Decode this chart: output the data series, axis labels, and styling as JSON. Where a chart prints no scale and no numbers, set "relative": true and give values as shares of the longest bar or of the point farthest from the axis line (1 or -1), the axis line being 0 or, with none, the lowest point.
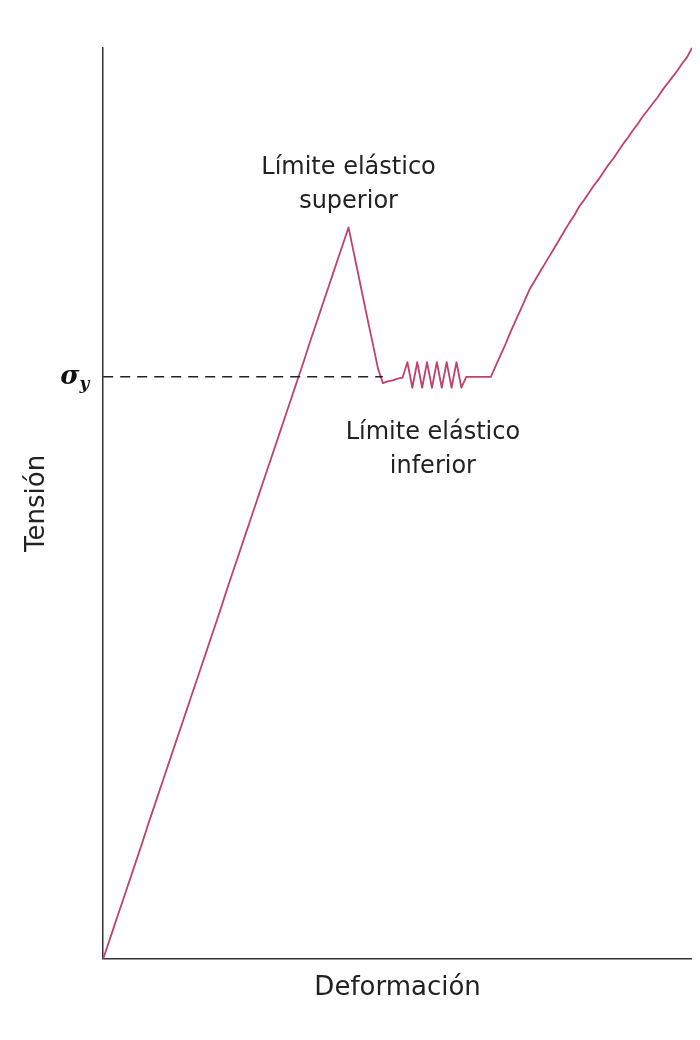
{
  "chart_data": {
    "type": "line",
    "relative": true,
    "xlabel": "Deformación",
    "ylabel": "Tensión",
    "color": "#c2406c",
    "marker": "none",
    "line_style": "solid",
    "grid": false,
    "legend": false,
    "categories": [
      null,
      null,
      null,
      null,
      null,
      null,
      null,
      null,
      null,
      null,
      null,
      null,
      null,
      null,
      null,
      null,
      null,
      null,
      null,
      null,
      null,
      null,
      null,
      null,
      null,
      null,
      null,
      null,
      null,
      null,
      null,
      null,
      null,
      null,
      null,
      null,
      null,
      null,
      null,
      null,
      null,
      null,
      null,
      null,
      null,
      null,
      null,
      null,
      null,
      null,
      null,
      null,
      null,
      null,
      null,
      null,
      null,
      null,
      null,
      null,
      null,
      null,
      null,
      null,
      null,
      null,
      null,
      null,
      null,
      null,
      null,
      null,
      null,
      null,
      null,
      null,
      null,
      null,
      null,
      null,
      null,
      null,
      null,
      null,
      null,
      null,
      null,
      null,
      null,
      null,
      null,
      null,
      null,
      null,
      null,
      null,
      null,
      null,
      null,
      null,
      null,
      null,
      null,
      null,
      null,
      null,
      null,
      null,
      null,
      null,
      null,
      null,
      null,
      null,
      null,
      null,
      null,
      null,
      null,
      null,
      null
    ],
    "values": [
      0,
      0.016,
      0.032,
      0.048,
      0.064,
      0.08,
      0.096,
      0.112,
      0.128,
      0.145,
      0.161,
      0.177,
      0.193,
      0.209,
      0.225,
      0.241,
      0.257,
      0.273,
      0.289,
      0.305,
      0.321,
      0.337,
      0.353,
      0.369,
      0.385,
      0.402,
      0.418,
      0.434,
      0.45,
      0.466,
      0.482,
      0.498,
      0.514,
      0.53,
      0.546,
      0.562,
      0.578,
      0.594,
      0.61,
      0.626,
      0.642,
      0.658,
      0.675,
      0.691,
      0.707,
      0.723,
      0.739,
      0.755,
      0.771,
      0.787,
      0.803,
      0.777,
      0.751,
      0.725,
      0.699,
      0.674,
      0.648,
      0.632,
      0.634,
      0.635,
      0.637,
      0.638,
      0.655,
      0.627,
      0.655,
      0.627,
      0.655,
      0.627,
      0.655,
      0.627,
      0.655,
      0.627,
      0.655,
      0.627,
      0.639,
      0.639,
      0.639,
      0.639,
      0.639,
      0.639,
      0.651,
      0.663,
      0.675,
      0.688,
      0.7,
      0.712,
      0.724,
      0.736,
      0.745,
      0.754,
      0.763,
      0.772,
      0.781,
      0.79,
      0.799,
      0.808,
      0.816,
      0.826,
      0.833,
      0.841,
      0.849,
      0.856,
      0.864,
      0.872,
      0.879,
      0.887,
      0.895,
      0.902,
      0.91,
      0.917,
      0.925,
      0.932,
      0.939,
      0.946,
      0.954,
      0.961,
      0.968,
      0.975,
      0.983,
      0.99,
      1
    ],
    "ref_lines": [
      {
        "axis": "y",
        "value": 0.639,
        "label": "σ$_{y}$",
        "line_style": "dashed",
        "color": "#222222"
      }
    ],
    "annotations": [
      "Límite elástico superior",
      "Límite elástico inferior"
    ]
  }
}
